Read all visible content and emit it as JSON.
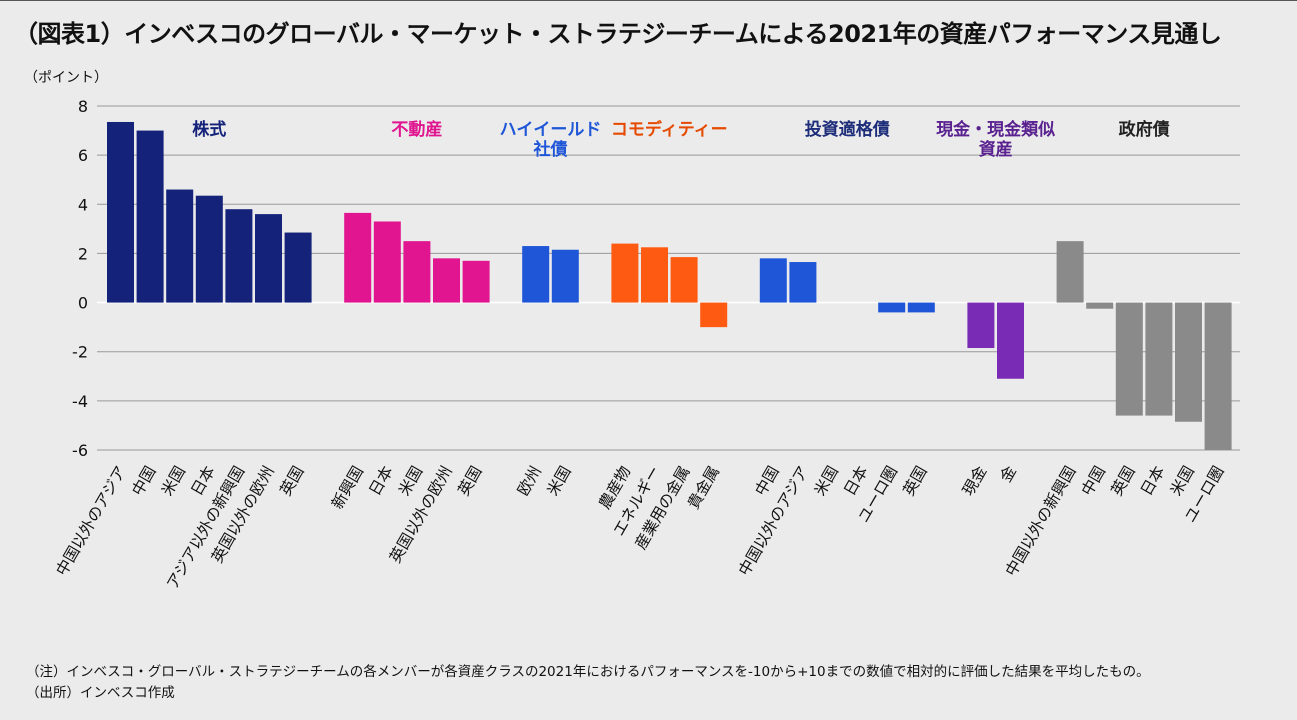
{
  "title": "（図表1）インベスコのグローバル・マーケット・ストラテジーチームによる2021年の資産パフォーマンス見通し",
  "notes": {
    "note": "（注）インベスコ・グローバル・ストラテジーチームの各メンバーが各資産クラスの2021年におけるパフォーマンスを-10から+10までの数値で相対的に評価した結果を平均したもの。",
    "source": "（出所）インベスコ作成"
  },
  "chart_data": {
    "type": "bar",
    "title": "（図表1）インベスコのグローバル・マーケット・ストラテジーチームによる2021年の資産パフォーマンス見通し",
    "ylabel": "（ポイント）",
    "xlabel": "",
    "ylim": [
      -6,
      8
    ],
    "yticks": [
      8,
      6,
      4,
      2,
      0,
      -2,
      -4,
      -6
    ],
    "grid": true,
    "groups": [
      {
        "name": "株式",
        "color": "#14227a",
        "categories": [
          "中国以外のアジア",
          "中国",
          "米国",
          "日本",
          "アジア以外の新興国",
          "英国以外の欧州",
          "英国"
        ],
        "values": [
          7.35,
          7.0,
          4.6,
          4.35,
          3.8,
          3.6,
          2.85
        ]
      },
      {
        "name": "不動産",
        "color": "#e0158f",
        "categories": [
          "新興国",
          "日本",
          "米国",
          "英国以外の欧州",
          "英国"
        ],
        "values": [
          3.65,
          3.3,
          2.5,
          1.8,
          1.7
        ]
      },
      {
        "name": "ハイイールド社債",
        "color": "#1f56d8",
        "categories": [
          "欧州",
          "米国"
        ],
        "values": [
          2.3,
          2.15
        ]
      },
      {
        "name": "コモディティー",
        "color": "#fe5a12",
        "categories": [
          "農産物",
          "エネルギー",
          "産業用の金属",
          "貴金属"
        ],
        "values": [
          2.4,
          2.25,
          1.85,
          -1.0
        ]
      },
      {
        "name": "投資適格債",
        "color": "#1f56d8",
        "categories": [
          "中国",
          "中国以外のアジア",
          "米国",
          "日本",
          "ユーロ圏",
          "英国"
        ],
        "values": [
          1.8,
          1.65,
          0,
          0,
          -0.4,
          -0.4
        ]
      },
      {
        "name": "現金・現金類似資産",
        "color": "#7a2bb5",
        "categories": [
          "現金",
          "金"
        ],
        "values": [
          -1.85,
          -3.1
        ]
      },
      {
        "name": "政府債",
        "color": "#8a8a8a",
        "categories": [
          "中国以外の新興国",
          "中国",
          "英国",
          "日本",
          "米国",
          "ユーロ圏"
        ],
        "values": [
          2.5,
          -0.25,
          -4.6,
          -4.6,
          -4.85,
          -6.0
        ]
      }
    ]
  },
  "colors": {
    "equity": "#14227a",
    "real_estate": "#e0158f",
    "high_yield": "#1f56d8",
    "commodity": "#fe5a12",
    "investment_grade": "#1f56d8",
    "cash": "#7a2bb5",
    "government": "#8a8a8a",
    "equity_label": "#14227a",
    "real_estate_label": "#e0158f",
    "high_yield_label": "#1f56d8",
    "commodity_label": "#e64a00",
    "investment_grade_label": "#1e2d7a",
    "cash_label": "#5a2190",
    "government_label": "#222222"
  },
  "group_labels": [
    {
      "lines": [
        "株式"
      ],
      "color_key": "equity_label"
    },
    {
      "lines": [
        "不動産"
      ],
      "color_key": "real_estate_label"
    },
    {
      "lines": [
        "ハイイールド",
        "社債"
      ],
      "color_key": "high_yield_label"
    },
    {
      "lines": [
        "コモディティー"
      ],
      "color_key": "commodity_label"
    },
    {
      "lines": [
        "投資適格債"
      ],
      "color_key": "investment_grade_label"
    },
    {
      "lines": [
        "現金・現金類似",
        "資産"
      ],
      "color_key": "cash_label"
    },
    {
      "lines": [
        "政府債"
      ],
      "color_key": "government_label"
    }
  ]
}
